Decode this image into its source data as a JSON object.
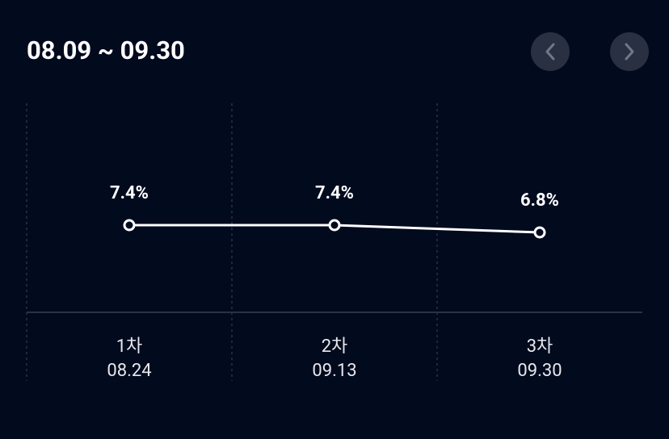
{
  "chart_data": {
    "type": "line",
    "title": "08.09 ~ 09.30",
    "categories": [
      "1차",
      "2차",
      "3차"
    ],
    "category_dates": [
      "08.24",
      "09.13",
      "09.30"
    ],
    "values": [
      7.4,
      7.4,
      6.8
    ],
    "value_labels": [
      "7.4%",
      "7.4%",
      "6.8%"
    ],
    "color": "#ffffff"
  }
}
